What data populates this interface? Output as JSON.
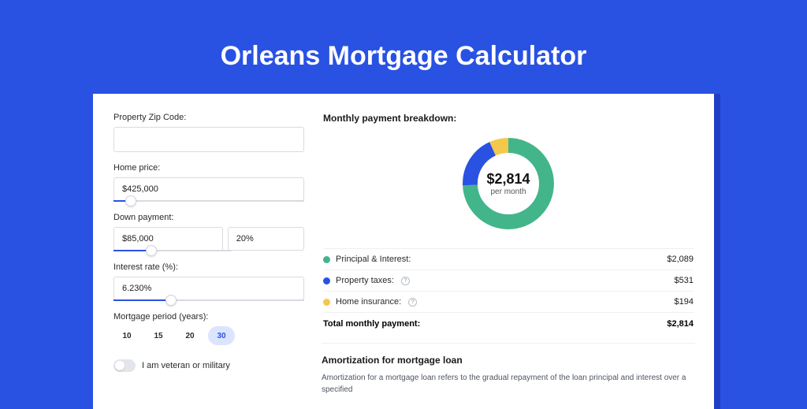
{
  "page": {
    "title": "Orleans Mortgage Calculator",
    "background_color": "#2952e3",
    "card_shadow_color": "#1e3fc4"
  },
  "form": {
    "zip": {
      "label": "Property Zip Code:",
      "value": ""
    },
    "home_price": {
      "label": "Home price:",
      "value": "$425,000",
      "slider": {
        "fill_pct": 9,
        "thumb_pct": 9
      }
    },
    "down_payment": {
      "label": "Down payment:",
      "amount": "$85,000",
      "percent": "20%",
      "slider": {
        "fill_pct": 20,
        "thumb_pct": 20
      }
    },
    "interest_rate": {
      "label": "Interest rate (%):",
      "value": "6.230%",
      "slider": {
        "fill_pct": 30,
        "thumb_pct": 30
      }
    },
    "mortgage_period": {
      "label": "Mortgage period (years):",
      "options": [
        "10",
        "15",
        "20",
        "30"
      ],
      "selected_index": 3
    },
    "veteran": {
      "label": "I am veteran or military",
      "checked": false
    }
  },
  "breakdown": {
    "title": "Monthly payment breakdown:",
    "donut": {
      "center_value": "$2,814",
      "center_sub": "per month",
      "ring_width": 18,
      "segments": [
        {
          "label": "Principal & Interest:",
          "value": "$2,089",
          "amount": 2089,
          "color": "#43b58a",
          "has_info": false
        },
        {
          "label": "Property taxes:",
          "value": "$531",
          "amount": 531,
          "color": "#2952e3",
          "has_info": true
        },
        {
          "label": "Home insurance:",
          "value": "$194",
          "amount": 194,
          "color": "#f3c84b",
          "has_info": true
        }
      ],
      "total_label": "Total monthly payment:",
      "total_value": "$2,814"
    }
  },
  "amortization": {
    "title": "Amortization for mortgage loan",
    "text": "Amortization for a mortgage loan refers to the gradual repayment of the loan principal and interest over a specified"
  }
}
